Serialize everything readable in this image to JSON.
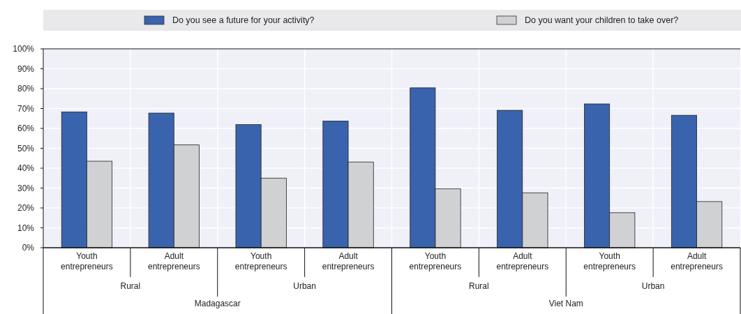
{
  "chart_data": {
    "type": "bar",
    "categories": [
      "Youth entrepreneurs",
      "Adult entrepreneurs",
      "Youth entrepreneurs",
      "Adult entrepreneurs",
      "Youth entrepreneurs",
      "Adult entrepreneurs",
      "Youth entrepreneurs",
      "Adult entrepreneurs"
    ],
    "series": [
      {
        "name": "Do you see a future for your activity?",
        "color": "#3a63ad",
        "values": [
          68.3,
          67.7,
          61.9,
          63.7,
          80.4,
          69.1,
          72.3,
          66.6
        ]
      },
      {
        "name": "Do you want your children to take over?",
        "color": "#d0d1d3",
        "values": [
          43.5,
          51.7,
          35,
          43.1,
          29.6,
          27.6,
          17.6,
          23.2
        ]
      }
    ],
    "ylim": [
      0,
      100
    ],
    "yticks": [
      {
        "value": 0,
        "label": "0%"
      },
      {
        "value": 10,
        "label": "10%"
      },
      {
        "value": 20,
        "label": "20%"
      },
      {
        "value": 30,
        "label": "30%"
      },
      {
        "value": 40,
        "label": "40%"
      },
      {
        "value": 50,
        "label": "50%"
      },
      {
        "value": 60,
        "label": "60%"
      },
      {
        "value": 70,
        "label": "70%"
      },
      {
        "value": 80,
        "label": "80%"
      },
      {
        "value": 90,
        "label": "90%"
      },
      {
        "value": 100,
        "label": "100%"
      }
    ],
    "grid": true,
    "legend": "top",
    "annotations": [
      "Rural",
      "Urban",
      "Rural",
      "Urban",
      "Madagascar",
      "Viet Nam"
    ]
  }
}
